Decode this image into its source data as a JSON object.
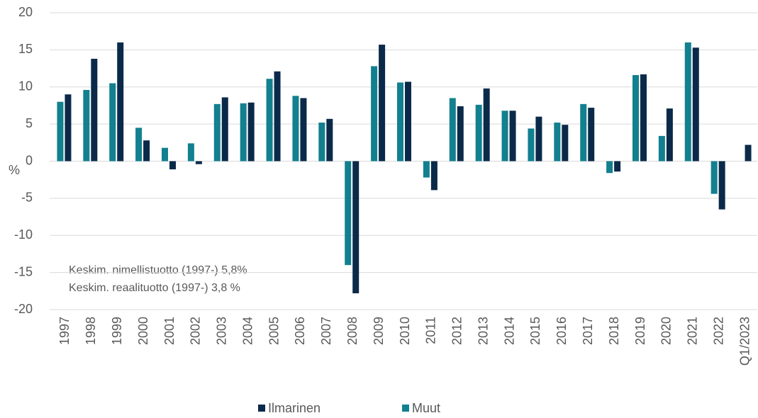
{
  "chart_data": {
    "type": "bar",
    "y_label": "%",
    "categories": [
      "1997",
      "1998",
      "1999",
      "2000",
      "2001",
      "2002",
      "2003",
      "2004",
      "2005",
      "2006",
      "2007",
      "2008",
      "2009",
      "2010",
      "2011",
      "2012",
      "2013",
      "2014",
      "2015",
      "2016",
      "2017",
      "2018",
      "2019",
      "2020",
      "2021",
      "2022",
      "Q1/2023"
    ],
    "series": [
      {
        "name": "Ilmarinen",
        "color": "#0b2a4a",
        "values": [
          9.0,
          13.8,
          16.0,
          2.8,
          -1.1,
          -0.4,
          8.6,
          7.9,
          12.1,
          8.5,
          5.7,
          -17.8,
          15.7,
          10.7,
          -3.9,
          7.4,
          9.8,
          6.8,
          6.0,
          4.9,
          7.2,
          -1.4,
          11.7,
          7.1,
          15.3,
          -6.5,
          2.2
        ]
      },
      {
        "name": "Muut",
        "color": "#12808f",
        "values": [
          8.0,
          9.6,
          10.5,
          4.5,
          1.8,
          2.4,
          7.7,
          7.8,
          11.1,
          8.8,
          5.2,
          -14.0,
          12.8,
          10.6,
          -2.2,
          8.5,
          7.6,
          6.8,
          4.4,
          5.2,
          7.7,
          -1.6,
          11.6,
          3.4,
          16.0,
          -4.4,
          null
        ]
      }
    ],
    "ylim": [
      -20,
      20
    ],
    "yticks": [
      20,
      15,
      10,
      5,
      0,
      -5,
      -10,
      -15,
      -20
    ],
    "grid": true,
    "legend": "bottom",
    "annotations": [
      "Keskim. nimellistuotto  (1997-) 5,8%",
      "Keskim. reaalituotto  (1997-) 3,8 %"
    ]
  }
}
